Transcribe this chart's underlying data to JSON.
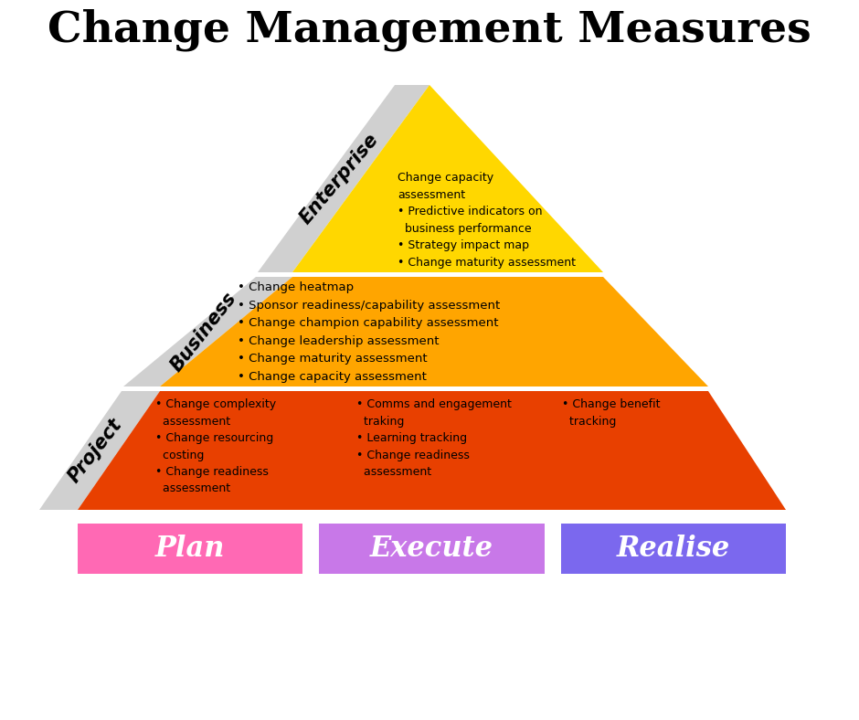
{
  "title": "Change Management Measures",
  "title_fontsize": 34,
  "bg_color": "#ffffff",
  "enterprise_color": "#FFD700",
  "business_color": "#FFA500",
  "project_color": "#E84000",
  "tab_color": "#D0D0D0",
  "enterprise_label": "Enterprise",
  "business_label": "Business",
  "project_label": "Project",
  "enterprise_items": "Change capacity\nassessment\n• Predictive indicators on\n  business performance\n• Strategy impact map\n• Change maturity assessment",
  "business_items": "• Change heatmap\n• Sponsor readiness/capability assessment\n• Change champion capability assessment\n• Change leadership assessment\n• Change maturity assessment\n• Change capacity assessment",
  "project_col1": "• Change complexity\n  assessment\n• Change resourcing\n  costing\n• Change readiness\n  assessment",
  "project_col2": "• Comms and engagement\n  traking\n• Learning tracking\n• Change readiness\n  assessment",
  "project_col3": "• Change benefit\n  tracking",
  "btn_plan_color": "#FF69B4",
  "btn_execute_color": "#C878E8",
  "btn_realise_color": "#7B68EE",
  "btn_plan_label": "Plan",
  "btn_execute_label": "Execute",
  "btn_realise_label": "Realise",
  "btn_text_color": "#ffffff",
  "btn_fontsize": 22
}
